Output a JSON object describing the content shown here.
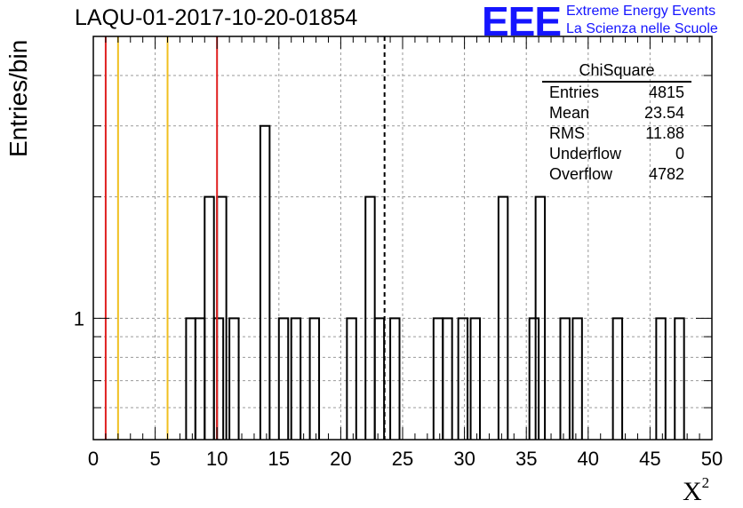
{
  "title": "LAQU-01-2017-10-20-01854",
  "logo": {
    "mark": "EEE",
    "line1": "Extreme Energy Events",
    "line2": "La Scienza nelle Scuole",
    "color": "#1515ff"
  },
  "stats": {
    "name": "ChiSquare",
    "rows": [
      {
        "label": "Entries",
        "value": "4815"
      },
      {
        "label": "Mean",
        "value": "23.54"
      },
      {
        "label": "RMS",
        "value": "11.88"
      },
      {
        "label": "Underflow",
        "value": "0"
      },
      {
        "label": "Overflow",
        "value": "4782"
      }
    ]
  },
  "chart_data": {
    "type": "bar",
    "title": "LAQU-01-2017-10-20-01854",
    "xlabel": "X",
    "xlabel_sup": "2",
    "ylabel": "Entries/bin",
    "xlim": [
      0,
      50
    ],
    "ylim": [
      0.5,
      5
    ],
    "yscale": "log",
    "grid": true,
    "bin_width": 0.75,
    "bins": [
      {
        "x": 7.5,
        "y": 1
      },
      {
        "x": 8.25,
        "y": 1
      },
      {
        "x": 9.0,
        "y": 2
      },
      {
        "x": 9.75,
        "y": 1
      },
      {
        "x": 10.0,
        "y": 2
      },
      {
        "x": 11.0,
        "y": 1
      },
      {
        "x": 13.5,
        "y": 3
      },
      {
        "x": 15.0,
        "y": 1
      },
      {
        "x": 16.0,
        "y": 1
      },
      {
        "x": 17.5,
        "y": 1
      },
      {
        "x": 20.5,
        "y": 1
      },
      {
        "x": 22.0,
        "y": 2
      },
      {
        "x": 22.75,
        "y": 1
      },
      {
        "x": 24.0,
        "y": 1
      },
      {
        "x": 27.5,
        "y": 1
      },
      {
        "x": 28.25,
        "y": 1
      },
      {
        "x": 29.5,
        "y": 1
      },
      {
        "x": 30.5,
        "y": 1
      },
      {
        "x": 32.75,
        "y": 2
      },
      {
        "x": 35.25,
        "y": 1
      },
      {
        "x": 35.75,
        "y": 2
      },
      {
        "x": 37.75,
        "y": 1
      },
      {
        "x": 38.75,
        "y": 1
      },
      {
        "x": 42.0,
        "y": 1
      },
      {
        "x": 45.5,
        "y": 1
      },
      {
        "x": 47.0,
        "y": 1
      }
    ],
    "xticks": [
      0,
      5,
      10,
      15,
      20,
      25,
      30,
      35,
      40,
      45,
      50
    ],
    "ytick_labels": [
      {
        "value": 1,
        "label": "1"
      }
    ],
    "vlines": [
      {
        "x": 1,
        "color": "#e02020",
        "style": "solid"
      },
      {
        "x": 2,
        "color": "#f0c020",
        "style": "solid"
      },
      {
        "x": 6,
        "color": "#f0c020",
        "style": "solid"
      },
      {
        "x": 10,
        "color": "#e02020",
        "style": "solid"
      },
      {
        "x": 23.54,
        "color": "#000000",
        "style": "dashed"
      }
    ]
  }
}
